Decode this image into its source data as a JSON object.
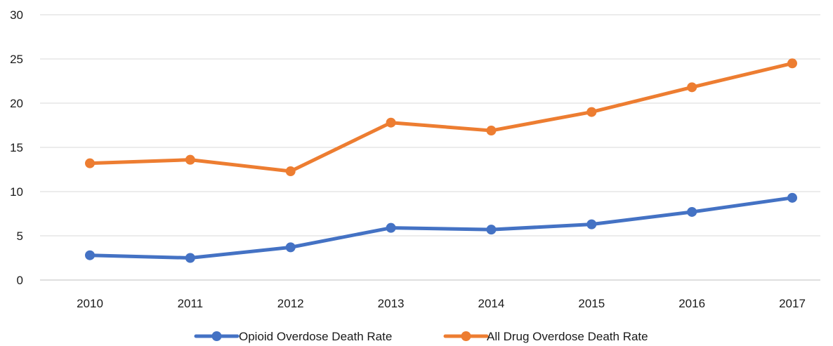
{
  "chart_data": {
    "type": "line",
    "title": "",
    "xlabel": "",
    "ylabel": "",
    "categories": [
      "2010",
      "2011",
      "2012",
      "2013",
      "2014",
      "2015",
      "2016",
      "2017"
    ],
    "ylim": [
      0,
      30
    ],
    "yticks": [
      0,
      5,
      10,
      15,
      20,
      25,
      30
    ],
    "grid": true,
    "legend_position": "bottom",
    "series": [
      {
        "name": "Opioid Overdose Death Rate",
        "color": "#4472C4",
        "values": [
          2.8,
          2.5,
          3.7,
          5.9,
          5.7,
          6.3,
          7.7,
          9.3
        ]
      },
      {
        "name": "All Drug Overdose Death Rate",
        "color": "#ED7D31",
        "values": [
          13.2,
          13.6,
          12.3,
          17.8,
          16.9,
          19.0,
          21.8,
          24.5
        ]
      }
    ]
  }
}
